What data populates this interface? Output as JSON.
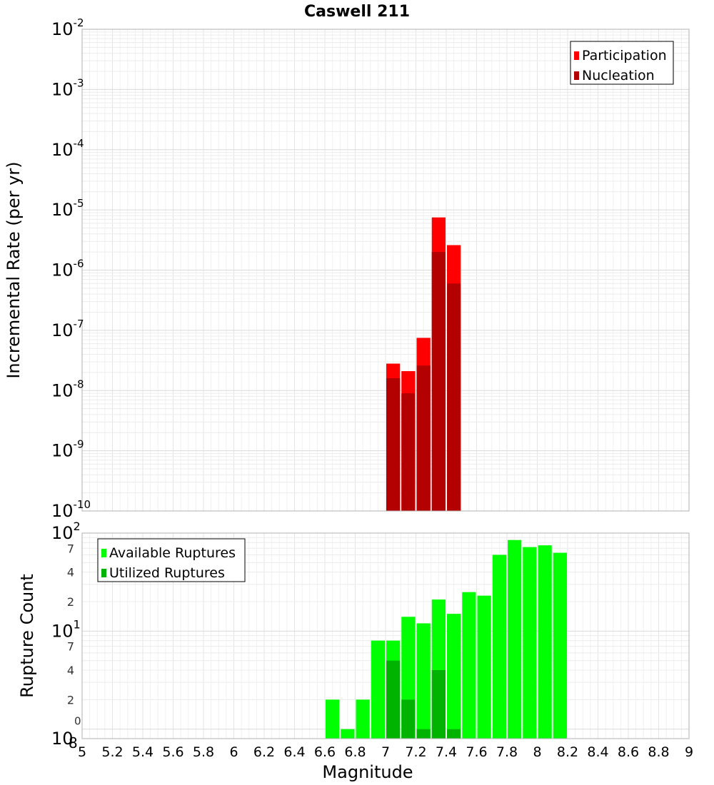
{
  "chart_data": [
    {
      "type": "bar",
      "title": "Caswell 211",
      "ylabel": "Incremental Rate (per yr)",
      "xlabel": "",
      "yscale": "log",
      "ylim": [
        1e-10,
        0.01
      ],
      "xlim": [
        5,
        9
      ],
      "bin_width": 0.1,
      "y_tick_base": "10",
      "y_tick_exponents": [
        "-10",
        "-9",
        "-8",
        "-7",
        "-6",
        "-5",
        "-4",
        "-3",
        "-2"
      ],
      "legend_position": "top-right",
      "series": [
        {
          "name": "Participation",
          "color": "#ff0000",
          "x": [
            7.05,
            7.15,
            7.25,
            7.35,
            7.45
          ],
          "values": [
            2.8e-08,
            2.1e-08,
            7.5e-08,
            7.5e-06,
            2.6e-06
          ]
        },
        {
          "name": "Nucleation",
          "color": "#b30000",
          "x": [
            7.05,
            7.15,
            7.25,
            7.35,
            7.45
          ],
          "values": [
            1.6e-08,
            9e-09,
            2.6e-08,
            2e-06,
            6e-07
          ]
        }
      ],
      "grid": true
    },
    {
      "type": "bar",
      "title": "",
      "ylabel": "Rupture Count",
      "xlabel": "Magnitude",
      "yscale": "log",
      "ylim": [
        0.8,
        100
      ],
      "xlim": [
        5,
        9
      ],
      "bin_width": 0.1,
      "x_ticks": [
        "5",
        "5.2",
        "5.4",
        "5.6",
        "5.8",
        "6",
        "6.2",
        "6.4",
        "6.6",
        "6.8",
        "7",
        "7.2",
        "7.4",
        "7.6",
        "7.8",
        "8",
        "8.2",
        "8.4",
        "8.6",
        "8.8",
        "9"
      ],
      "y_tick_labels": [
        {
          "value": 100,
          "base": "10",
          "exp": "2"
        },
        {
          "value": 10,
          "base": "10",
          "exp": "1"
        },
        {
          "value": 1,
          "base": "",
          "exp": "0"
        },
        {
          "value": 0.8,
          "base": "10",
          "exp": "",
          "suffix": "8"
        }
      ],
      "y_minor_labels": [
        {
          "value": 70,
          "label": "7"
        },
        {
          "value": 40,
          "label": "4"
        },
        {
          "value": 20,
          "label": "2"
        },
        {
          "value": 7,
          "label": "7"
        },
        {
          "value": 4,
          "label": "4"
        },
        {
          "value": 2,
          "label": "2"
        }
      ],
      "legend_position": "top-left",
      "series": [
        {
          "name": "Available Ruptures",
          "color": "#00ff00",
          "x": [
            6.65,
            6.75,
            6.85,
            6.95,
            7.05,
            7.15,
            7.25,
            7.35,
            7.45,
            7.55,
            7.65,
            7.75,
            7.85,
            7.95,
            8.05,
            8.15
          ],
          "values": [
            2,
            1,
            2,
            8,
            8,
            14,
            12,
            21,
            15,
            25,
            23,
            60,
            85,
            72,
            75,
            63
          ]
        },
        {
          "name": "Utilized Ruptures",
          "color": "#00b300",
          "x": [
            7.05,
            7.15,
            7.25,
            7.35,
            7.45
          ],
          "values": [
            5,
            2,
            1,
            4,
            1
          ]
        }
      ],
      "grid": true
    }
  ]
}
